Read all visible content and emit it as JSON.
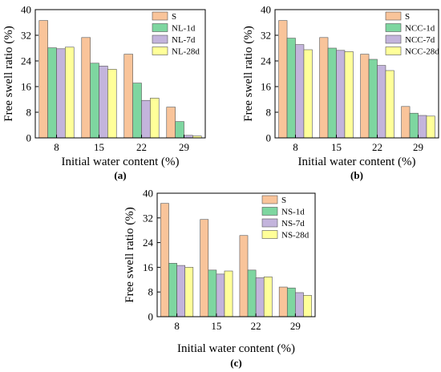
{
  "chart_data": [
    {
      "type": "bar",
      "panel_label": "(a)",
      "categories": [
        "8",
        "15",
        "22",
        "29"
      ],
      "series": [
        {
          "name": "S",
          "color": "#f9c49a",
          "values": [
            36.6,
            31.3,
            26.1,
            9.6
          ]
        },
        {
          "name": "NL-1d",
          "color": "#7ed6a0",
          "values": [
            28.1,
            23.3,
            17.1,
            5.1
          ]
        },
        {
          "name": "NL-7d",
          "color": "#c3b4dc",
          "values": [
            27.8,
            22.4,
            11.7,
            0.8
          ]
        },
        {
          "name": "NL-28d",
          "color": "#ffff99",
          "values": [
            28.3,
            21.4,
            12.4,
            0.6
          ]
        }
      ],
      "xlabel": "Initial water content (%)",
      "ylabel": "Free swell ratio (%)",
      "ylim": [
        0,
        40
      ],
      "yticks": [
        "0",
        "8",
        "16",
        "24",
        "32",
        "40"
      ],
      "legend": "top-right"
    },
    {
      "type": "bar",
      "panel_label": "(b)",
      "categories": [
        "8",
        "15",
        "22",
        "29"
      ],
      "series": [
        {
          "name": "S",
          "color": "#f9c49a",
          "values": [
            36.6,
            31.3,
            26.1,
            9.8
          ]
        },
        {
          "name": "NCC-1d",
          "color": "#7ed6a0",
          "values": [
            31.1,
            28.0,
            24.5,
            7.7
          ]
        },
        {
          "name": "NCC-7d",
          "color": "#c3b4dc",
          "values": [
            29.1,
            27.3,
            22.6,
            7.0
          ]
        },
        {
          "name": "NCC-28d",
          "color": "#ffff99",
          "values": [
            27.5,
            26.9,
            21.0,
            6.8
          ]
        }
      ],
      "xlabel": "Initial water content (%)",
      "ylabel": "Free swell ratio (%)",
      "ylim": [
        0,
        40
      ],
      "yticks": [
        "0",
        "8",
        "16",
        "24",
        "32",
        "40"
      ],
      "legend": "top-right"
    },
    {
      "type": "bar",
      "panel_label": "(c)",
      "categories": [
        "8",
        "15",
        "22",
        "29"
      ],
      "series": [
        {
          "name": "S",
          "color": "#f9c49a",
          "values": [
            36.7,
            31.5,
            26.3,
            9.6
          ]
        },
        {
          "name": "NS-1d",
          "color": "#7ed6a0",
          "values": [
            17.3,
            15.1,
            15.1,
            9.3
          ]
        },
        {
          "name": "NS-7d",
          "color": "#c3b4dc",
          "values": [
            16.6,
            13.8,
            12.6,
            7.8
          ]
        },
        {
          "name": "NS-28d",
          "color": "#ffff99",
          "values": [
            16.0,
            14.8,
            12.9,
            6.9
          ]
        }
      ],
      "xlabel": "Initial water content (%)",
      "ylabel": "Free swell ratio (%)",
      "ylim": [
        0,
        40
      ],
      "yticks": [
        "0",
        "8",
        "16",
        "24",
        "32",
        "40"
      ],
      "legend": "top-right"
    }
  ]
}
